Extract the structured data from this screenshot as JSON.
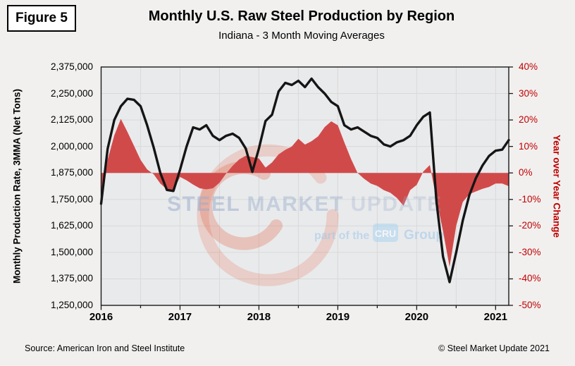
{
  "figure_label": "Figure 5",
  "title": "Monthly U.S. Raw Steel Production by Region",
  "subtitle": "Indiana - 3 Month Moving Averages",
  "footer": {
    "source": "Source: American Iron and Steel Institute",
    "copyright": "© Steel Market Update 2021"
  },
  "watermark": {
    "word1": "STEEL",
    "word2": "MARKET",
    "word3": "UPDATE",
    "tagline_prefix": "part of the",
    "tagline_badge": "CRU",
    "tagline_suffix": "Group"
  },
  "colors": {
    "background": "#f1f0ef",
    "plot_background": "#e9eaec",
    "gridline": "#d9d9d9",
    "plot_border": "#1a1a1a",
    "area_red": "#d14a4a",
    "line_black": "#151515",
    "right_axis_red": "#c00000",
    "watermark_text_blue": "#97abc9",
    "watermark_light_blue": "#9ec7e9",
    "cru_badge_bg": "#9dcfef",
    "crescent_orange": "#e2684a"
  },
  "chart_data": {
    "type": "line+area",
    "title": "Monthly U.S. Raw Steel Production by Region",
    "subtitle": "Indiana - 3 Month Moving Averages",
    "grid": true,
    "x_tick_labels": [
      "2016",
      "2017",
      "2018",
      "2019",
      "2020",
      "2021"
    ],
    "left_axis": {
      "label": "Monthly Production Rate, 3MMA (Net Tons)",
      "min": 1250000,
      "max": 2375000,
      "tick_step": 125000,
      "tick_labels": [
        "2,375,000",
        "2,250,000",
        "2,125,000",
        "2,000,000",
        "1,875,000",
        "1,750,000",
        "1,625,000",
        "1,500,000",
        "1,375,000",
        "1,250,000"
      ]
    },
    "right_axis": {
      "label": "Year over Year Change",
      "min": -50,
      "max": 40,
      "tick_step": 10,
      "tick_labels": [
        "40%",
        "30%",
        "20%",
        "10%",
        "0%",
        "-10%",
        "-20%",
        "-30%",
        "-40%",
        "-50%"
      ]
    },
    "months": [
      "2016-01",
      "2016-02",
      "2016-03",
      "2016-04",
      "2016-05",
      "2016-06",
      "2016-07",
      "2016-08",
      "2016-09",
      "2016-10",
      "2016-11",
      "2016-12",
      "2017-01",
      "2017-02",
      "2017-03",
      "2017-04",
      "2017-05",
      "2017-06",
      "2017-07",
      "2017-08",
      "2017-09",
      "2017-10",
      "2017-11",
      "2017-12",
      "2018-01",
      "2018-02",
      "2018-03",
      "2018-04",
      "2018-05",
      "2018-06",
      "2018-07",
      "2018-08",
      "2018-09",
      "2018-10",
      "2018-11",
      "2018-12",
      "2019-01",
      "2019-02",
      "2019-03",
      "2019-04",
      "2019-05",
      "2019-06",
      "2019-07",
      "2019-08",
      "2019-09",
      "2019-10",
      "2019-11",
      "2019-12",
      "2020-01",
      "2020-02",
      "2020-03",
      "2020-04",
      "2020-05",
      "2020-06",
      "2020-07",
      "2020-08",
      "2020-09",
      "2020-10",
      "2020-11",
      "2020-12",
      "2021-01",
      "2021-02",
      "2021-03"
    ],
    "series": [
      {
        "name": "production_3mma_net_tons",
        "style": "black_line",
        "axis": "left",
        "values": [
          1730000,
          1990000,
          2125000,
          2190000,
          2225000,
          2220000,
          2190000,
          2100000,
          1995000,
          1875000,
          1795000,
          1790000,
          1890000,
          2000000,
          2090000,
          2080000,
          2100000,
          2050000,
          2030000,
          2050000,
          2060000,
          2040000,
          1990000,
          1880000,
          1990000,
          2120000,
          2150000,
          2260000,
          2300000,
          2290000,
          2310000,
          2280000,
          2320000,
          2280000,
          2250000,
          2210000,
          2190000,
          2100000,
          2080000,
          2090000,
          2070000,
          2050000,
          2040000,
          2010000,
          2000000,
          2020000,
          2030000,
          2050000,
          2100000,
          2140000,
          2160000,
          1740000,
          1480000,
          1360000,
          1500000,
          1650000,
          1770000,
          1850000,
          1910000,
          1955000,
          1980000,
          1985000,
          2030000
        ]
      },
      {
        "name": "year_over_year_change_pct",
        "style": "red_area",
        "axis": "right",
        "values": [
          -13.3,
          5.0,
          14.2,
          20.4,
          15.5,
          10.2,
          4.9,
          1.3,
          -0.5,
          -4.0,
          -6.2,
          -6.7,
          -1.5,
          -2.8,
          -4.4,
          -5.8,
          -6.2,
          -5.8,
          -3.7,
          -0.3,
          2.7,
          5.1,
          6.5,
          6.0,
          5.5,
          2.0,
          4.0,
          7.0,
          8.7,
          10.0,
          12.9,
          10.7,
          12.0,
          13.8,
          17.3,
          19.5,
          18.0,
          11.5,
          5.3,
          0.0,
          -2.2,
          -4.0,
          -4.9,
          -6.5,
          -7.5,
          -9.5,
          -12.4,
          -6.5,
          -4.5,
          0.5,
          3.0,
          -10.0,
          -22.0,
          -35.5,
          -20.0,
          -11.0,
          -8.0,
          -7.0,
          -6.0,
          -5.3,
          -4.0,
          -4.0,
          -5.0
        ]
      }
    ]
  }
}
